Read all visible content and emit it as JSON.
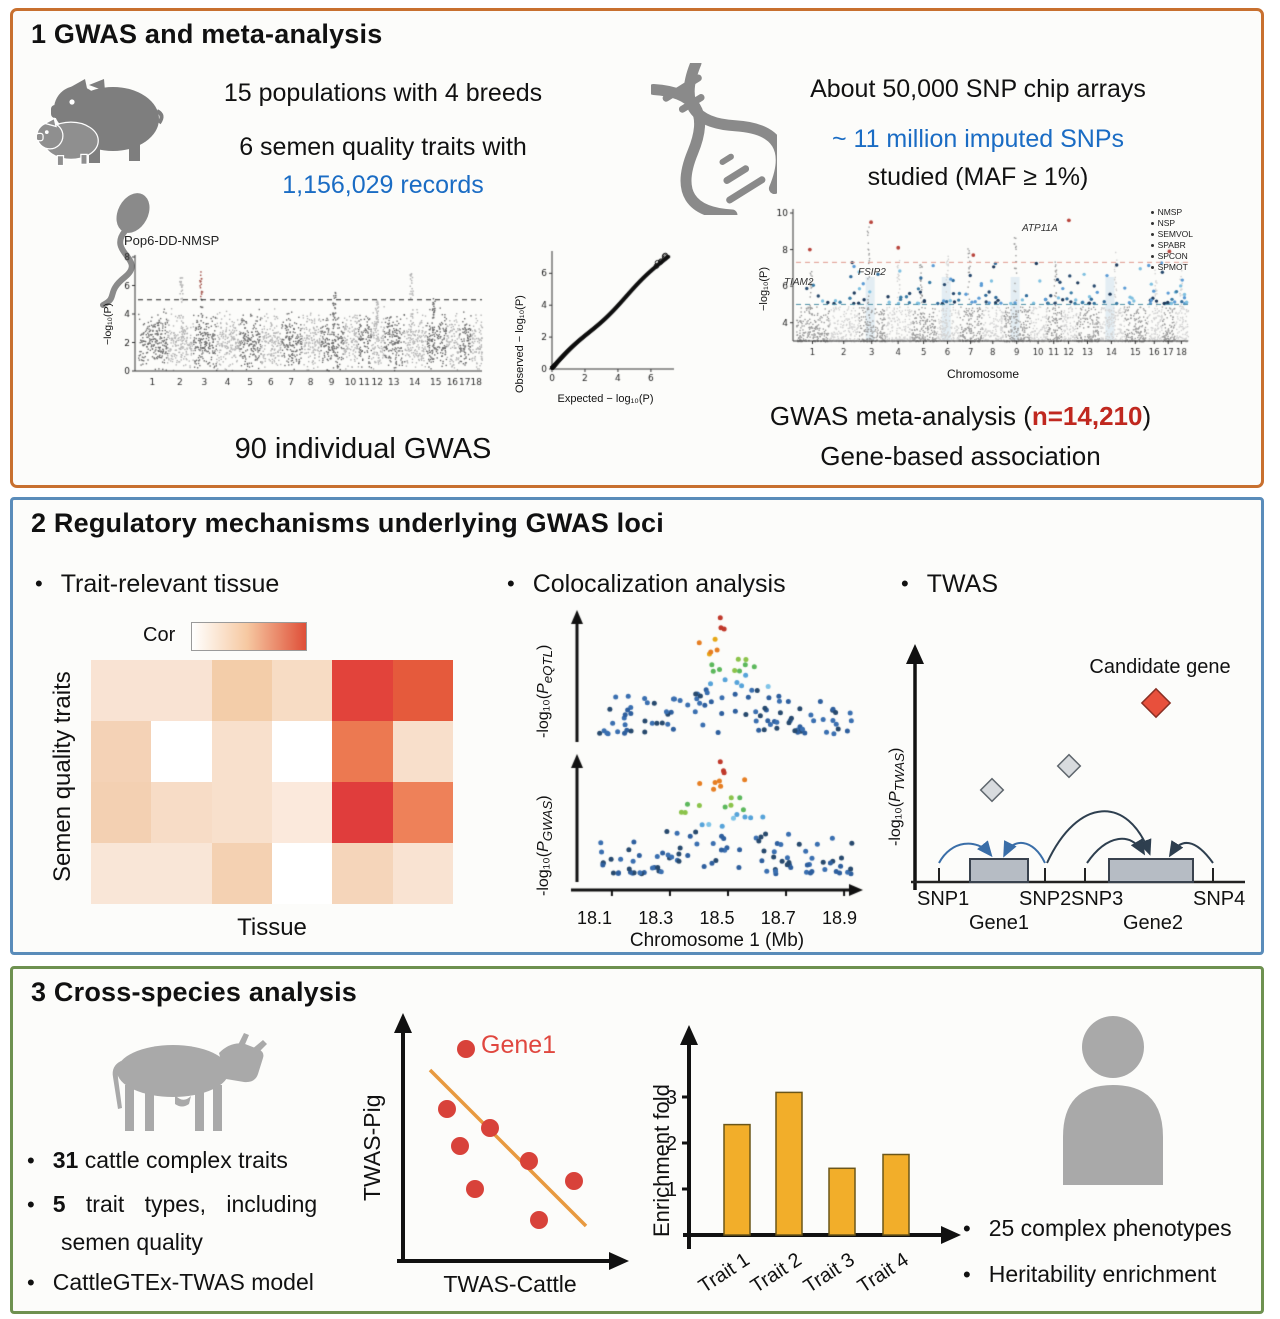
{
  "colors": {
    "panel1_border": "#c8702f",
    "panel2_border": "#5a8cba",
    "panel3_border": "#6e9150",
    "accent_blue_text": "#1a6cc4",
    "accent_red_text": "#c0281f",
    "bar_fill": "#f2ae2a",
    "scatter_dot": "#d8423a",
    "trend_line": "#e89a40",
    "icon_gray": "#8a8a8a"
  },
  "panel1": {
    "title": "1 GWAS and meta-analysis",
    "left": {
      "line1": "15 populations with 4 breeds",
      "line2": "6 semen quality traits with",
      "line2_highlight": "1,156,029 records",
      "ylabel": "−log₁₀(P)",
      "caption": "90 individual GWAS"
    },
    "qq": {
      "ylabel": "Observed − log₁₀(P)",
      "xlabel": "Expected − log₁₀(P)"
    },
    "right": {
      "line1": "About 50,000 SNP chip arrays",
      "line2": "~ 11 million imputed SNPs",
      "line3": "studied (MAF ≥ 1%)",
      "meta_ylabel": "−log₁₀(P)",
      "meta_caption_prefix": "GWAS meta-analysis (",
      "meta_caption_n": "n=14,210",
      "meta_caption_suffix": ")",
      "caption2": "Gene-based association"
    }
  },
  "panel2": {
    "title": "2 Regulatory mechanisms underlying GWAS loci",
    "tissue": {
      "bullet": "Trait-relevant tissue",
      "cor_label": "Cor",
      "ylabel": "Semen quality traits",
      "xlabel": "Tissue"
    },
    "coloc": {
      "bullet": "Colocalization analysis",
      "ylab_pre": "-log₁₀(",
      "p": "P",
      "sub_top": "eQTL",
      "sub_bottom": "GWAS",
      "ylab_post": ")"
    },
    "twas": {
      "bullet": "TWAS",
      "ylab_pre": "-log₁₀(",
      "p": "P",
      "sub": "TWAS",
      "ylab_post": ")",
      "candidate_label": "Candidate gene",
      "snps": [
        "SNP1",
        "SNP2",
        "SNP3",
        "SNP4"
      ],
      "genes": [
        "Gene1",
        "Gene2"
      ]
    }
  },
  "panel3": {
    "title": "3 Cross-species analysis",
    "bullet1_num": "31",
    "bullet1_rest": "cattle complex traits",
    "bullet2_num": "5",
    "bullet2_rest": "trait types, including",
    "bullet2_line2": "semen quality",
    "bullet3": "CattleGTEx-TWAS model",
    "gene_label": "Gene1",
    "bullet_r1": "25 complex phenotypes",
    "bullet_r2": "Heritability enrichment"
  },
  "chart_data": [
    {
      "id": "pop6-gwas",
      "type": "scatter",
      "title": "Pop6-DD-NMSP",
      "ylabel": "-log10(P)",
      "ylim": [
        0,
        8
      ],
      "yticks": [
        0,
        2,
        4,
        6,
        8
      ],
      "categories": [
        "1",
        "2",
        "3",
        "4",
        "5",
        "6",
        "7",
        "8",
        "9",
        "10",
        "11",
        "12",
        "13",
        "14",
        "15",
        "16",
        "17",
        "18"
      ],
      "threshold": 5,
      "peaks": {
        "1": 6.6,
        "2": 7.2,
        "8": 5.7,
        "11": 5.0,
        "13": 6.9,
        "14": 5.2
      },
      "note": "Manhattan plot of one individual GWAS, alternating gray chromosomes, dashed significance line at 5"
    },
    {
      "id": "qq",
      "type": "scatter",
      "ylabel": "Observed - log10(P)",
      "xlabel": "Expected - log10(P)",
      "xlim": [
        0,
        7.4
      ],
      "ylim": [
        0,
        7.4
      ],
      "xticks": [
        0,
        2,
        4,
        6
      ],
      "yticks": [
        0,
        2,
        4,
        6
      ],
      "note": "QQ plot, observed vs expected on the diagonal"
    },
    {
      "id": "meta-manhattan",
      "type": "scatter",
      "ylabel": "-log10(P)",
      "xlabel": "Chromosome",
      "ylim": [
        3,
        10
      ],
      "yticks": [
        4,
        6,
        8,
        10
      ],
      "categories": [
        "1",
        "2",
        "3",
        "4",
        "5",
        "6",
        "7",
        "8",
        "9",
        "10",
        "11",
        "12",
        "13",
        "14",
        "15",
        "16",
        "17",
        "18"
      ],
      "thresholds": [
        5,
        7.3
      ],
      "legend": [
        "NMSP",
        "NSP",
        "SEMVOL",
        "SPABR",
        "SPCON",
        "SPMOT"
      ],
      "annotations": [
        "TIAM2",
        "FSIP2",
        "ATP11A"
      ],
      "towers": {
        "0": 6.9,
        "2": 9.4,
        "3": 7.6,
        "4": 7.2,
        "5": 7.9,
        "6": 8.1,
        "8": 8.7,
        "10": 7.4,
        "13": 8.0,
        "15": 7.0,
        "17": 7.4
      },
      "note": "Meta-analysis Manhattan plot, six traits colored, red and teal dashed thresholds"
    },
    {
      "id": "tissue-heatmap",
      "type": "heatmap",
      "rows": 4,
      "cols": 6,
      "xlabel": "Tissue",
      "ylabel": "Semen quality traits",
      "legend_label": "Cor",
      "cell_colors": [
        [
          "#f9e3d3",
          "#f9e3d3",
          "#f3cda9",
          "#f7dcc4",
          "#e2433b",
          "#e55a3c"
        ],
        [
          "#f4d2b6",
          "#ffffff",
          "#f8e0cc",
          "#ffffff",
          "#ec7951",
          "#f8dfcb"
        ],
        [
          "#f3d0b2",
          "#f7dcc6",
          "#f8e0cc",
          "#fbe9dc",
          "#e03d3c",
          "#ee8159"
        ],
        [
          "#f9e6d7",
          "#f9e6d7",
          "#f4d1b2",
          "#ffffff",
          "#f5d5ba",
          "#f9e3d2"
        ]
      ]
    },
    {
      "id": "coloc",
      "type": "scatter",
      "panels": [
        "eQTL",
        "GWAS"
      ],
      "xlabel": "Chromosome 1 (Mb)",
      "xticks": [
        "18.1",
        "18.3",
        "18.5",
        "18.7",
        "18.9"
      ],
      "peak_mb": 18.45,
      "note": "Two stacked locus plots; points mostly dark blue with red/orange/green/light-blue LD peak near 18.45 Mb"
    },
    {
      "id": "cross-species-scatter",
      "type": "scatter",
      "ylabel": "TWAS-Pig",
      "xlabel": "TWAS-Cattle",
      "annotation": "Gene1",
      "points": [
        [
          81,
          40
        ],
        [
          62,
          100
        ],
        [
          105,
          119
        ],
        [
          75,
          137
        ],
        [
          144,
          152
        ],
        [
          90,
          180
        ],
        [
          189,
          172
        ],
        [
          154,
          211
        ]
      ],
      "trend": [
        [
          45,
          61
        ],
        [
          201,
          217
        ]
      ],
      "note": "Negative correlation, 8 red points with orange fit line; coordinates in plot pixels"
    },
    {
      "id": "enrichment-bars",
      "type": "bar",
      "categories": [
        "Trait 1",
        "Trait 2",
        "Trait 3",
        "Trait 4"
      ],
      "values": [
        2.4,
        3.1,
        1.45,
        1.75
      ],
      "ylabel": "Enrichment fold",
      "yticks": [
        1,
        2,
        3
      ],
      "ylim": [
        0,
        3.6
      ]
    }
  ]
}
